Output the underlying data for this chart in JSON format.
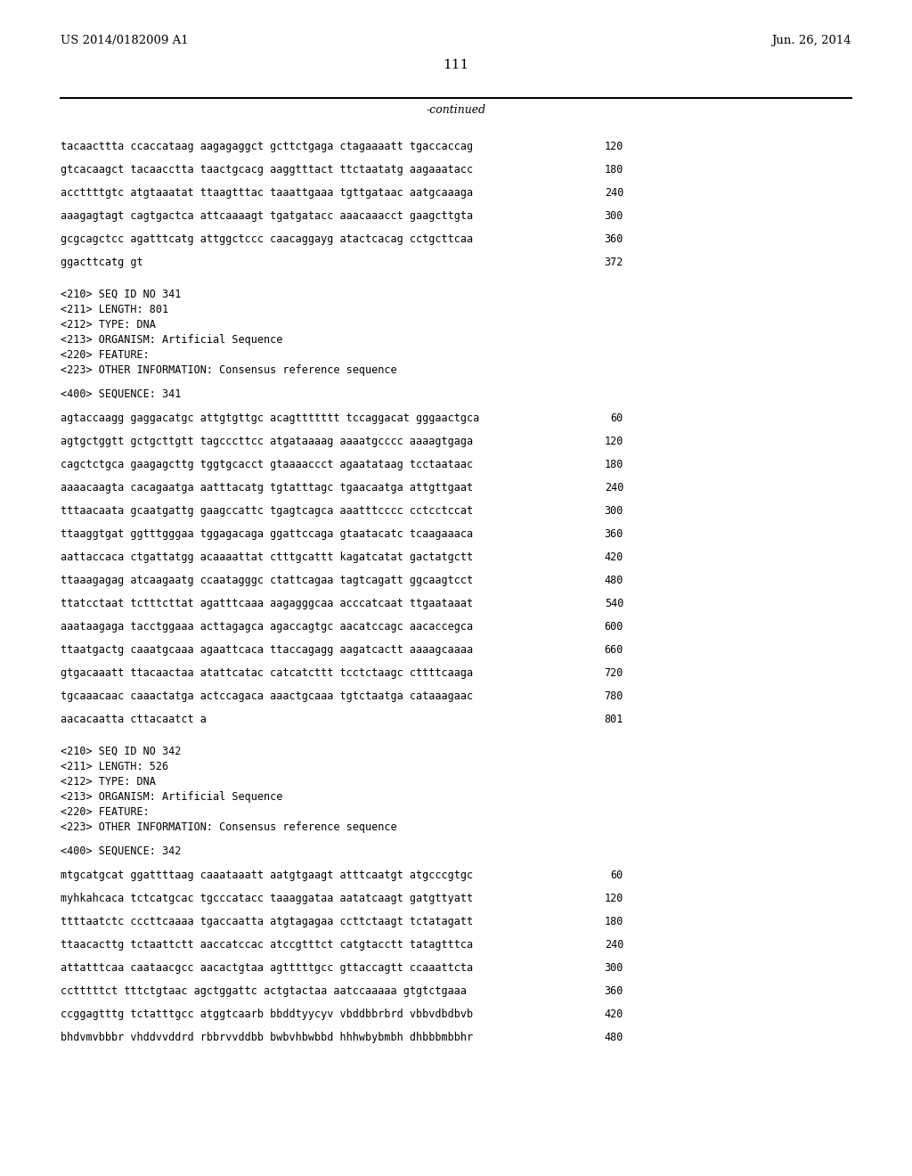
{
  "bg_color": "#ffffff",
  "header_left": "US 2014/0182009 A1",
  "header_right": "Jun. 26, 2014",
  "page_number": "111",
  "continued_label": "-continued",
  "content": [
    {
      "type": "sequence_line",
      "text": "tacaacttta ccaccataag aagagaggct gcttctgaga ctagaaaatt tgaccaccag",
      "num": "120"
    },
    {
      "type": "sequence_line",
      "text": "gtcacaagct tacaacctta taactgcacg aaggtttact ttctaatatg aagaaatacc",
      "num": "180"
    },
    {
      "type": "sequence_line",
      "text": "accttttgtc atgtaaatat ttaagtttac taaattgaaa tgttgataac aatgcaaaga",
      "num": "240"
    },
    {
      "type": "sequence_line",
      "text": "aaagagtagt cagtgactca attcaaaagt tgatgatacc aaacaaacct gaagcttgta",
      "num": "300"
    },
    {
      "type": "sequence_line",
      "text": "gcgcagctcc agatttcatg attggctccc caacaggayg atactcacag cctgcttcaa",
      "num": "360"
    },
    {
      "type": "sequence_line",
      "text": "ggacttcatg gt",
      "num": "372"
    },
    {
      "type": "blank_large"
    },
    {
      "type": "meta",
      "text": "<210> SEQ ID NO 341"
    },
    {
      "type": "meta",
      "text": "<211> LENGTH: 801"
    },
    {
      "type": "meta",
      "text": "<212> TYPE: DNA"
    },
    {
      "type": "meta",
      "text": "<213> ORGANISM: Artificial Sequence"
    },
    {
      "type": "meta",
      "text": "<220> FEATURE:"
    },
    {
      "type": "meta",
      "text": "<223> OTHER INFORMATION: Consensus reference sequence"
    },
    {
      "type": "blank_large"
    },
    {
      "type": "meta",
      "text": "<400> SEQUENCE: 341"
    },
    {
      "type": "blank_large"
    },
    {
      "type": "sequence_line",
      "text": "agtaccaagg gaggacatgc attgtgttgc acagttttttt tccaggacat gggaactgca",
      "num": "60"
    },
    {
      "type": "sequence_line",
      "text": "agtgctggtt gctgcttgtt tagcccttcc atgataaaag aaaatgcccc aaaagtgaga",
      "num": "120"
    },
    {
      "type": "sequence_line",
      "text": "cagctctgca gaagagcttg tggtgcacct gtaaaaccct agaatataag tcctaataac",
      "num": "180"
    },
    {
      "type": "sequence_line",
      "text": "aaaacaagta cacagaatga aatttacatg tgtatttagc tgaacaatga attgttgaat",
      "num": "240"
    },
    {
      "type": "sequence_line",
      "text": "tttaacaata gcaatgattg gaagccattc tgagtcagca aaatttcccc cctcctccat",
      "num": "300"
    },
    {
      "type": "sequence_line",
      "text": "ttaaggtgat ggtttgggaa tggagacaga ggattccaga gtaatacatc tcaagaaaca",
      "num": "360"
    },
    {
      "type": "sequence_line",
      "text": "aattaccaca ctgattatgg acaaaattat ctttgcattt kagatcatat gactatgctt",
      "num": "420"
    },
    {
      "type": "sequence_line",
      "text": "ttaaagagag atcaagaatg ccaatagggc ctattcagaa tagtcagatt ggcaagtcct",
      "num": "480"
    },
    {
      "type": "sequence_line",
      "text": "ttatcctaat tctttcttat agatttcaaa aagagggcaa acccatcaat ttgaataaat",
      "num": "540"
    },
    {
      "type": "sequence_line",
      "text": "aaataagaga tacctggaaa acttagagca agaccagtgc aacatccagc aacaccegca",
      "num": "600"
    },
    {
      "type": "sequence_line",
      "text": "ttaatgactg caaatgcaaa agaattcaca ttaccagagg aagatcactt aaaagcaaaa",
      "num": "660"
    },
    {
      "type": "sequence_line",
      "text": "gtgacaaatt ttacaactaa atattcatac catcatcttt tcctctaagc cttttcaaga",
      "num": "720"
    },
    {
      "type": "sequence_line",
      "text": "tgcaaacaac caaactatga actccagaca aaactgcaaa tgtctaatga cataaagaac",
      "num": "780"
    },
    {
      "type": "sequence_line",
      "text": "aacacaatta cttacaatct a",
      "num": "801"
    },
    {
      "type": "blank_large"
    },
    {
      "type": "meta",
      "text": "<210> SEQ ID NO 342"
    },
    {
      "type": "meta",
      "text": "<211> LENGTH: 526"
    },
    {
      "type": "meta",
      "text": "<212> TYPE: DNA"
    },
    {
      "type": "meta",
      "text": "<213> ORGANISM: Artificial Sequence"
    },
    {
      "type": "meta",
      "text": "<220> FEATURE:"
    },
    {
      "type": "meta",
      "text": "<223> OTHER INFORMATION: Consensus reference sequence"
    },
    {
      "type": "blank_large"
    },
    {
      "type": "meta",
      "text": "<400> SEQUENCE: 342"
    },
    {
      "type": "blank_large"
    },
    {
      "type": "sequence_line",
      "text": "mtgcatgcat ggattttaag caaataaatt aatgtgaagt atttcaatgt atgcccgtgc",
      "num": "60"
    },
    {
      "type": "sequence_line",
      "text": "myhkahcaca tctcatgcac tgcccatacc taaaggataa aatatcaagt gatgttyatt",
      "num": "120"
    },
    {
      "type": "sequence_line",
      "text": "ttttaatctc cccttcaaaa tgaccaatta atgtagagaa ccttctaagt tctatagatt",
      "num": "180"
    },
    {
      "type": "sequence_line",
      "text": "ttaacacttg tctaattctt aaccatccac atccgtttct catgtacctt tatagtttca",
      "num": "240"
    },
    {
      "type": "sequence_line",
      "text": "attatttcaa caataacgcc aacactgtaa agtttttgcc gttaccagtt ccaaattcta",
      "num": "300"
    },
    {
      "type": "sequence_line",
      "text": "cctttttct tttctgtaac agctggattc actgtactaa aatccaaaaa gtgtctgaaa",
      "num": "360"
    },
    {
      "type": "sequence_line",
      "text": "ccggagtttg tctatttgcc atggtcaarb bbddtyycyv vbddbbrbrd vbbvdbdbvb",
      "num": "420"
    },
    {
      "type": "sequence_line",
      "text": "bhdvmvbbbr vhddvvddrd rbbrvvddbb bwbvhbwbbd hhhwbybmbh dhbbbmbbhr",
      "num": "480"
    }
  ]
}
